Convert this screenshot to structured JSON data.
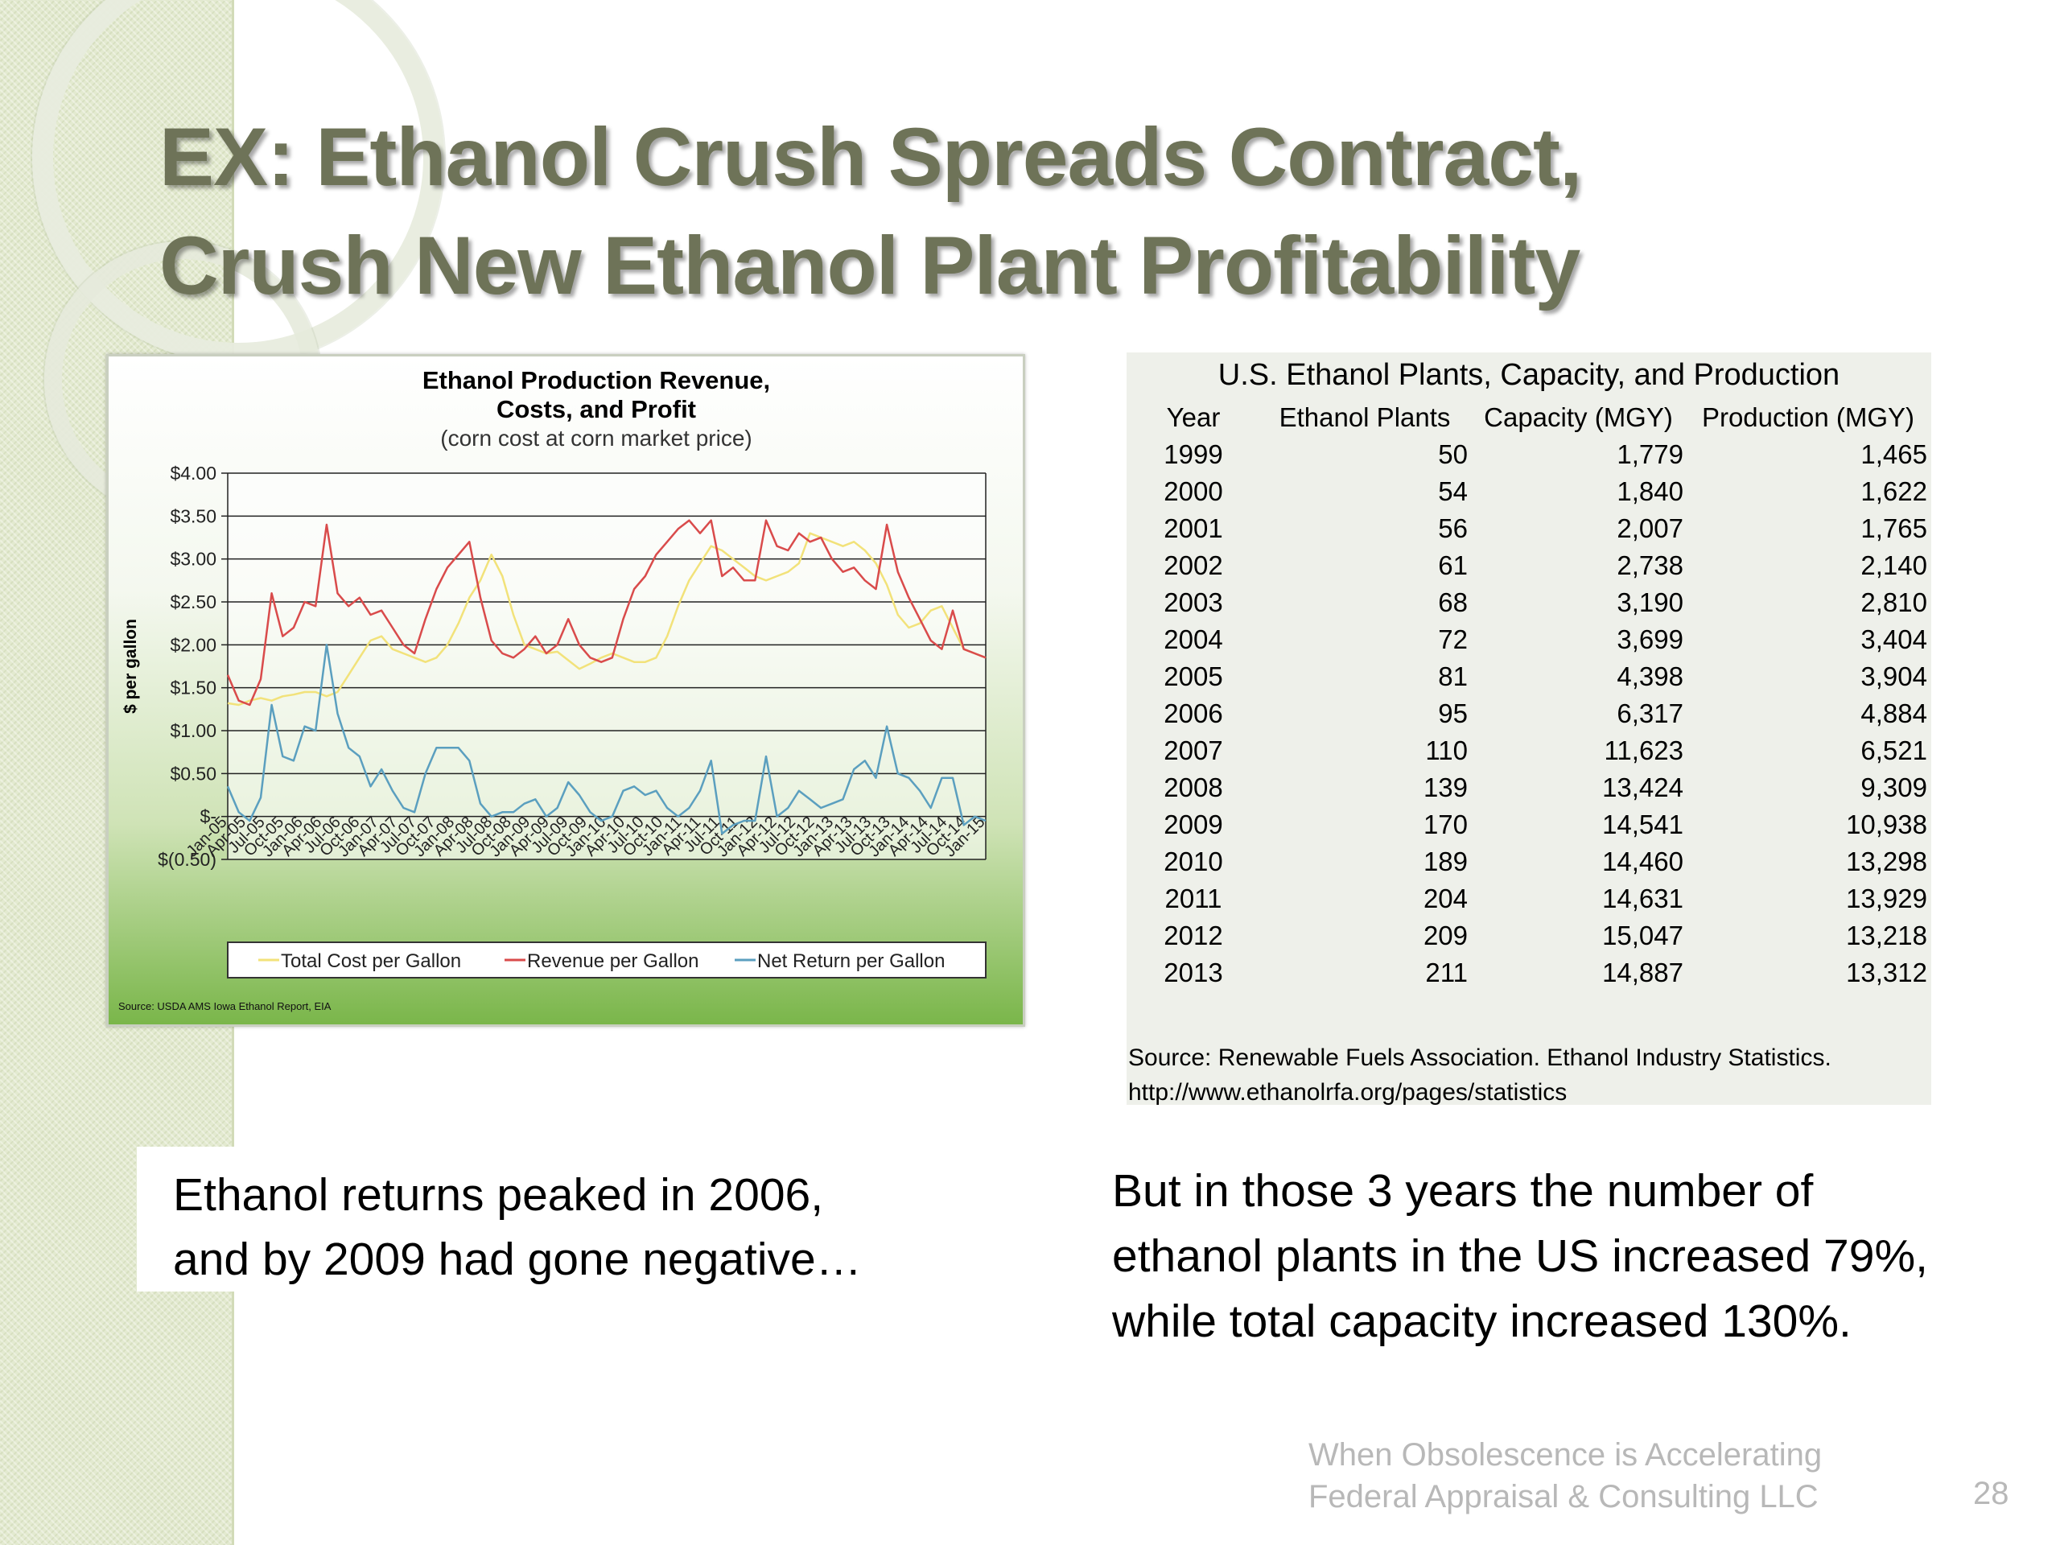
{
  "slide": {
    "title_line1": "EX: Ethanol Crush Spreads Contract,",
    "title_line2": "Crush New Ethanol Plant Profitability",
    "footer_line1": "When Obsolescence is Accelerating",
    "footer_line2": "Federal Appraisal & Consulting LLC",
    "page_number": "28"
  },
  "chart_data": {
    "type": "line",
    "title_line1": "Ethanol Production Revenue,",
    "title_line2": "Costs, and Profit",
    "subtitle": "(corn cost at corn market price)",
    "ylabel": "$ per gallon",
    "xlabel": "",
    "ylim": [
      -0.5,
      4.0
    ],
    "yticks": [
      -0.5,
      0,
      0.5,
      1.0,
      1.5,
      2.0,
      2.5,
      3.0,
      3.5,
      4.0
    ],
    "ytick_labels": [
      "$(0.50)",
      "$-",
      "$0.50",
      "$1.00",
      "$1.50",
      "$2.00",
      "$2.50",
      "$3.00",
      "$3.50",
      "$4.00"
    ],
    "x_start": "Jan-05",
    "x_end": "Jan-15",
    "x_labels": [
      "Jan-05",
      "Apr-05",
      "Jul-05",
      "Oct-05",
      "Jan-06",
      "Apr-06",
      "Jul-06",
      "Oct-06",
      "Jan-07",
      "Apr-07",
      "Jul-07",
      "Oct-07",
      "Jan-08",
      "Apr-08",
      "Jul-08",
      "Oct-08",
      "Jan-09",
      "Apr-09",
      "Jul-09",
      "Oct-09",
      "Jan-10",
      "Apr-10",
      "Jul-10",
      "Oct-10",
      "Jan-11",
      "Apr-11",
      "Jul-11",
      "Oct-11",
      "Jan-12",
      "Apr-12",
      "Jul-12",
      "Oct-12",
      "Jan-13",
      "Apr-13",
      "Jul-13",
      "Oct-13",
      "Jan-14",
      "Apr-14",
      "Jul-14",
      "Oct-14",
      "Jan-15"
    ],
    "grid": true,
    "legend_position": "bottom",
    "series": [
      {
        "name": "Total Cost per Gallon",
        "color": "#f2e27a",
        "values": [
          1.32,
          1.3,
          1.35,
          1.38,
          1.35,
          1.4,
          1.42,
          1.45,
          1.45,
          1.4,
          1.45,
          1.65,
          1.85,
          2.05,
          2.1,
          1.95,
          1.9,
          1.85,
          1.8,
          1.85,
          2.0,
          2.25,
          2.55,
          2.75,
          3.05,
          2.8,
          2.35,
          2.0,
          1.95,
          1.9,
          1.92,
          1.82,
          1.72,
          1.78,
          1.85,
          1.9,
          1.85,
          1.8,
          1.8,
          1.85,
          2.1,
          2.45,
          2.75,
          2.95,
          3.15,
          3.1,
          3.0,
          2.9,
          2.8,
          2.75,
          2.8,
          2.85,
          2.95,
          3.3,
          3.25,
          3.2,
          3.15,
          3.2,
          3.1,
          2.95,
          2.7,
          2.35,
          2.2,
          2.25,
          2.4,
          2.45,
          2.2,
          1.95,
          1.9,
          1.85
        ]
      },
      {
        "name": "Revenue per Gallon",
        "color": "#d94b4b",
        "values": [
          1.65,
          1.35,
          1.3,
          1.6,
          2.6,
          2.1,
          2.2,
          2.5,
          2.45,
          3.4,
          2.6,
          2.45,
          2.55,
          2.35,
          2.4,
          2.2,
          2.0,
          1.9,
          2.3,
          2.65,
          2.9,
          3.05,
          3.2,
          2.55,
          2.05,
          1.9,
          1.85,
          1.95,
          2.1,
          1.9,
          2.0,
          2.3,
          2.0,
          1.85,
          1.8,
          1.85,
          2.3,
          2.65,
          2.8,
          3.05,
          3.2,
          3.35,
          3.45,
          3.3,
          3.45,
          2.8,
          2.9,
          2.75,
          2.75,
          3.45,
          3.15,
          3.1,
          3.3,
          3.2,
          3.25,
          3.0,
          2.85,
          2.9,
          2.75,
          2.65,
          3.4,
          2.85,
          2.55,
          2.3,
          2.05,
          1.95,
          2.4,
          1.95,
          1.9,
          1.85
        ]
      },
      {
        "name": "Net Return per Gallon",
        "color": "#5b9fbf",
        "values": [
          0.35,
          0.05,
          -0.05,
          0.22,
          1.3,
          0.7,
          0.65,
          1.05,
          1.0,
          2.0,
          1.2,
          0.8,
          0.7,
          0.35,
          0.55,
          0.3,
          0.1,
          0.05,
          0.5,
          0.8,
          0.8,
          0.8,
          0.65,
          0.15,
          0.0,
          0.05,
          0.05,
          0.15,
          0.2,
          0.0,
          0.1,
          0.4,
          0.25,
          0.05,
          -0.05,
          0.0,
          0.3,
          0.35,
          0.25,
          0.3,
          0.1,
          0.0,
          0.1,
          0.3,
          0.65,
          -0.2,
          -0.1,
          -0.05,
          -0.05,
          0.7,
          0.0,
          0.1,
          0.3,
          0.2,
          0.1,
          0.15,
          0.2,
          0.55,
          0.65,
          0.45,
          1.05,
          0.5,
          0.45,
          0.3,
          0.1,
          0.45,
          0.45,
          -0.1,
          0.0,
          -0.05
        ]
      }
    ],
    "source": "Source: USDA AMS Iowa Ethanol Report, EIA"
  },
  "table": {
    "caption": "U.S. Ethanol Plants, Capacity, and Production",
    "headers": [
      "Year",
      "Ethanol Plants",
      "Capacity (MGY)",
      "Production (MGY)"
    ],
    "rows": [
      [
        "1999",
        "50",
        "1,779",
        "1,465"
      ],
      [
        "2000",
        "54",
        "1,840",
        "1,622"
      ],
      [
        "2001",
        "56",
        "2,007",
        "1,765"
      ],
      [
        "2002",
        "61",
        "2,738",
        "2,140"
      ],
      [
        "2003",
        "68",
        "3,190",
        "2,810"
      ],
      [
        "2004",
        "72",
        "3,699",
        "3,404"
      ],
      [
        "2005",
        "81",
        "4,398",
        "3,904"
      ],
      [
        "2006",
        "95",
        "6,317",
        "4,884"
      ],
      [
        "2007",
        "110",
        "11,623",
        "6,521"
      ],
      [
        "2008",
        "139",
        "13,424",
        "9,309"
      ],
      [
        "2009",
        "170",
        "14,541",
        "10,938"
      ],
      [
        "2010",
        "189",
        "14,460",
        "13,298"
      ],
      [
        "2011",
        "204",
        "14,631",
        "13,929"
      ],
      [
        "2012",
        "209",
        "15,047",
        "13,218"
      ],
      [
        "2013",
        "211",
        "14,887",
        "13,312"
      ]
    ],
    "source_line1": "Source: Renewable Fuels Association. Ethanol Industry Statistics.",
    "source_line2": "http://www.ethanolrfa.org/pages/statistics"
  },
  "notes": {
    "left_line1": "Ethanol returns peaked in 2006,",
    "left_line2": "and by 2009 had gone negative…",
    "right_line1": "But in those 3 years the number of",
    "right_line2": "ethanol plants in the US increased 79%,",
    "right_line3": "while total capacity increased 130%."
  }
}
